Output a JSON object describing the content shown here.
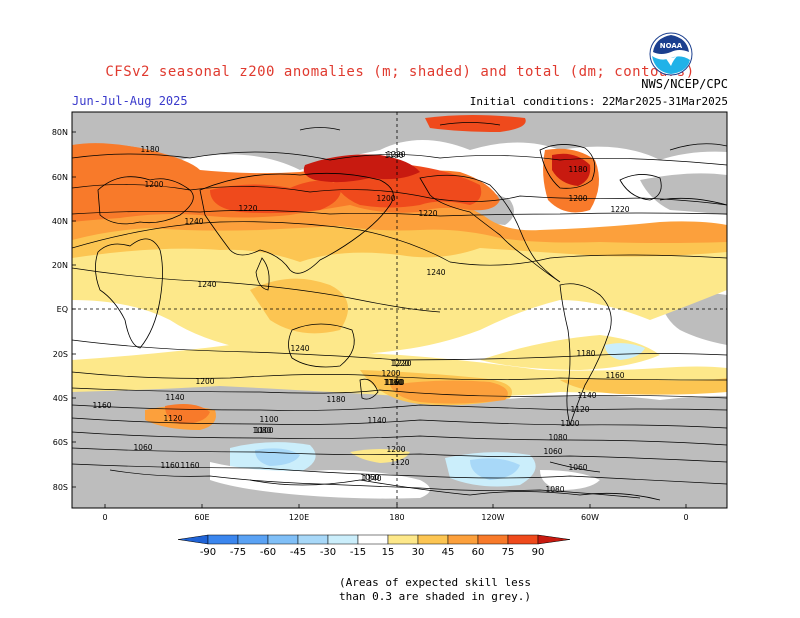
{
  "title": "CFSv2 seasonal z200 anomalies (m; shaded) and total (dm; contours)",
  "season": "Jun-Jul-Aug 2025",
  "agency": "NWS/NCEP/CPC",
  "initial_conditions": "Initial conditions: 22Mar2025-31Mar2025",
  "logo_text": "NOAA",
  "map": {
    "lat_ticks": [
      "80N",
      "60N",
      "40N",
      "20N",
      "EQ",
      "20S",
      "40S",
      "60S",
      "80S"
    ],
    "lon_ticks": [
      "0",
      "60E",
      "120E",
      "180",
      "120W",
      "60W",
      "0"
    ],
    "contour_labels": [
      "1180",
      "1200",
      "1220",
      "1240",
      "1240",
      "1240",
      "1180",
      "1200",
      "1220",
      "1240",
      "1220",
      "1200",
      "1200",
      "1180",
      "1180",
      "1160",
      "1140",
      "1120",
      "1100",
      "1080",
      "1060",
      "1160",
      "1180",
      "1220",
      "1200",
      "1180",
      "1160",
      "1140",
      "1120",
      "1100",
      "1080",
      "1060",
      "1060",
      "1060",
      "1080",
      "1200",
      "1220",
      "1220",
      "1180",
      "1160",
      "1140",
      "1100",
      "1160",
      "1140",
      "1120"
    ],
    "grey_meaning": "low skill"
  },
  "colorbar": {
    "labels": [
      "-90",
      "-75",
      "-60",
      "-45",
      "-30",
      "-15",
      "15",
      "30",
      "45",
      "60",
      "75",
      "90"
    ],
    "colors": [
      "#1f63d6",
      "#3b86ee",
      "#5aa2f4",
      "#80bff7",
      "#a8d8f8",
      "#cbeefb",
      "#ffffff",
      "#fde88a",
      "#fcc552",
      "#fca03c",
      "#f87a2a",
      "#ef4a1c",
      "#c81a10"
    ]
  },
  "note": [
    "(Areas of expected skill less",
    "than 0.3 are shaded in grey.)"
  ]
}
